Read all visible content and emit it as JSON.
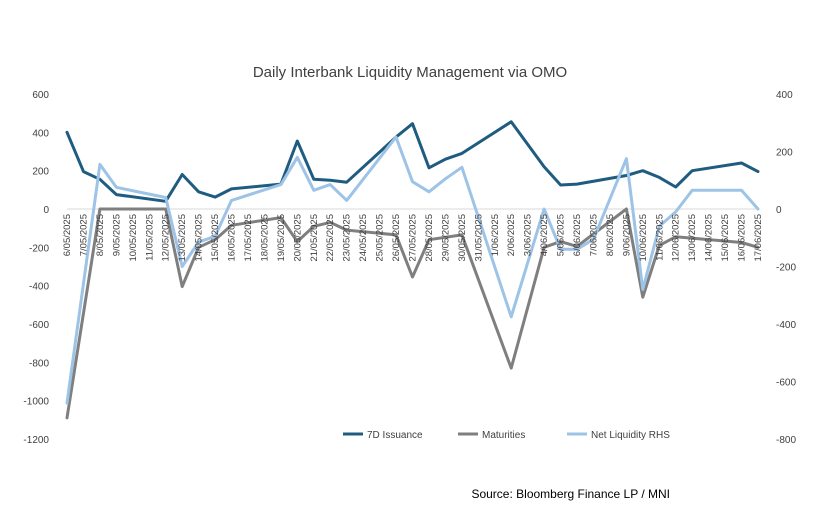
{
  "chart_data": {
    "type": "line",
    "title": "Daily Interbank Liquidity Management via OMO",
    "source": "Source: Bloomberg Finance LP / MNI",
    "x": [
      "6/05/2025",
      "7/05/2025",
      "8/05/2025",
      "9/05/2025",
      "10/05/2025",
      "11/05/2025",
      "12/05/2025",
      "13/05/2025",
      "14/05/2025",
      "15/05/2025",
      "16/05/2025",
      "17/05/2025",
      "18/05/2025",
      "19/05/2025",
      "20/05/2025",
      "21/05/2025",
      "22/05/2025",
      "23/05/2025",
      "24/05/2025",
      "25/05/2025",
      "26/05/2025",
      "27/05/2025",
      "28/05/2025",
      "29/05/2025",
      "30/05/2025",
      "31/05/2025",
      "1/06/2025",
      "2/06/2025",
      "3/06/2025",
      "4/06/2025",
      "5/06/2025",
      "6/06/2025",
      "7/06/2025",
      "8/06/2025",
      "9/06/2025",
      "10/06/2025",
      "11/06/2025",
      "12/06/2025",
      "13/06/2025",
      "14/06/2025",
      "15/06/2025",
      "16/06/2025",
      "17/06/2025"
    ],
    "ylim_left": [
      -1200,
      600
    ],
    "yticks_left": [
      600,
      400,
      200,
      0,
      -200,
      -400,
      -600,
      -800,
      -1000,
      -1200
    ],
    "ylim_right": [
      -800,
      400
    ],
    "yticks_right": [
      400,
      200,
      0,
      -200,
      -400,
      -600,
      -800
    ],
    "legend_position": "bottom-right",
    "series": [
      {
        "name": "7D Issuance",
        "axis": "left",
        "color": "#1f5c80",
        "points": [
          [
            0,
            400
          ],
          [
            1,
            195
          ],
          [
            2,
            155
          ],
          [
            3,
            75
          ],
          [
            6,
            40
          ],
          [
            7,
            180
          ],
          [
            8,
            90
          ],
          [
            9,
            62
          ],
          [
            10,
            105
          ],
          [
            13,
            130
          ],
          [
            14,
            355
          ],
          [
            15,
            155
          ],
          [
            16,
            150
          ],
          [
            17,
            140
          ],
          [
            20,
            375
          ],
          [
            21,
            445
          ],
          [
            22,
            215
          ],
          [
            23,
            260
          ],
          [
            24,
            290
          ],
          [
            27,
            455
          ],
          [
            29,
            220
          ],
          [
            30,
            125
          ],
          [
            31,
            130
          ],
          [
            34,
            175
          ],
          [
            35,
            200
          ],
          [
            36,
            165
          ],
          [
            37,
            115
          ],
          [
            38,
            200
          ],
          [
            41,
            240
          ],
          [
            42,
            195
          ]
        ]
      },
      {
        "name": "Maturities",
        "axis": "left",
        "color": "#7f7f7f",
        "points": [
          [
            0,
            -1090
          ],
          [
            2,
            0
          ],
          [
            6,
            0
          ],
          [
            7,
            -405
          ],
          [
            8,
            -200
          ],
          [
            9,
            -160
          ],
          [
            10,
            -85
          ],
          [
            13,
            -45
          ],
          [
            14,
            -170
          ],
          [
            15,
            -90
          ],
          [
            16,
            -70
          ],
          [
            17,
            -110
          ],
          [
            20,
            -135
          ],
          [
            21,
            -355
          ],
          [
            22,
            -160
          ],
          [
            24,
            -135
          ],
          [
            27,
            -830
          ],
          [
            29,
            -200
          ],
          [
            30,
            -170
          ],
          [
            31,
            -195
          ],
          [
            34,
            0
          ],
          [
            35,
            -460
          ],
          [
            36,
            -190
          ],
          [
            37,
            -145
          ],
          [
            41,
            -175
          ],
          [
            42,
            -200
          ]
        ]
      },
      {
        "name": "Net Liquidity RHS",
        "axis": "right",
        "color": "#9dc3e6",
        "points": [
          [
            0,
            -675
          ],
          [
            2,
            155
          ],
          [
            3,
            75
          ],
          [
            6,
            40
          ],
          [
            7,
            -200
          ],
          [
            8,
            -115
          ],
          [
            9,
            -95
          ],
          [
            10,
            30
          ],
          [
            13,
            85
          ],
          [
            14,
            180
          ],
          [
            15,
            65
          ],
          [
            16,
            85
          ],
          [
            17,
            30
          ],
          [
            20,
            250
          ],
          [
            21,
            95
          ],
          [
            22,
            60
          ],
          [
            23,
            105
          ],
          [
            24,
            145
          ],
          [
            27,
            -375
          ],
          [
            29,
            0
          ],
          [
            30,
            -140
          ],
          [
            31,
            -140
          ],
          [
            32,
            -105
          ],
          [
            34,
            175
          ],
          [
            35,
            -280
          ],
          [
            36,
            -60
          ],
          [
            37,
            -10
          ],
          [
            38,
            65
          ],
          [
            41,
            65
          ],
          [
            42,
            0
          ]
        ]
      }
    ]
  }
}
